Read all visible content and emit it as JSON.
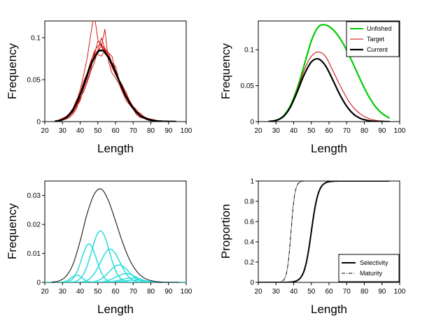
{
  "chart_data": [
    {
      "id": "panel-a",
      "type": "line",
      "xlabel": "Length",
      "ylabel": "Frequency",
      "xlim": [
        20,
        100
      ],
      "ylim": [
        0,
        0.12
      ],
      "xticks": [
        "20",
        "30",
        "40",
        "50",
        "60",
        "70",
        "80",
        "90",
        "100"
      ],
      "yticks": [
        "0",
        "0.05",
        "0.1"
      ],
      "grid": false,
      "mean_series": {
        "color": "#000000",
        "x": [
          26,
          30,
          34,
          38,
          42,
          46,
          50,
          52,
          54,
          58,
          62,
          66,
          70,
          74,
          78,
          82,
          86,
          90,
          94
        ],
        "y": [
          0.0004,
          0.0023,
          0.0085,
          0.0222,
          0.0436,
          0.0673,
          0.0829,
          0.0848,
          0.0827,
          0.0688,
          0.0489,
          0.0299,
          0.0159,
          0.0073,
          0.0029,
          0.001,
          0.0003,
          0.0001,
          0
        ]
      },
      "sample_series": {
        "color": "#cc0000",
        "x": [
          26,
          28,
          30,
          32,
          34,
          36,
          38,
          40,
          42,
          44,
          46,
          48,
          50,
          52,
          54,
          56,
          58,
          60,
          62,
          64,
          66,
          68,
          70,
          72,
          74,
          76,
          78,
          80,
          82,
          84,
          86,
          88,
          90,
          92,
          94
        ],
        "lines": [
          [
            0,
            0.001,
            0.002,
            0.004,
            0.007,
            0.012,
            0.021,
            0.031,
            0.042,
            0.055,
            0.07,
            0.084,
            0.09,
            0.092,
            0.084,
            0.079,
            0.07,
            0.058,
            0.05,
            0.042,
            0.03,
            0.022,
            0.017,
            0.011,
            0.008,
            0.005,
            0.003,
            0.002,
            0.001,
            0.001,
            0,
            0,
            0,
            0,
            0
          ],
          [
            0,
            0,
            0.002,
            0.005,
            0.009,
            0.016,
            0.024,
            0.038,
            0.056,
            0.076,
            0.104,
            0.128,
            0.098,
            0.09,
            0.11,
            0.072,
            0.058,
            0.052,
            0.045,
            0.035,
            0.025,
            0.02,
            0.015,
            0.008,
            0.005,
            0.004,
            0.002,
            0.002,
            0.001,
            0,
            0,
            0,
            0,
            0,
            0
          ],
          [
            0,
            0.002,
            0.003,
            0.005,
            0.008,
            0.013,
            0.02,
            0.028,
            0.036,
            0.048,
            0.062,
            0.081,
            0.08,
            0.078,
            0.085,
            0.082,
            0.07,
            0.066,
            0.05,
            0.04,
            0.035,
            0.024,
            0.018,
            0.014,
            0.008,
            0.006,
            0.004,
            0.003,
            0.002,
            0.001,
            0.001,
            0,
            0,
            0,
            0
          ],
          [
            0,
            0.001,
            0.002,
            0.003,
            0.007,
            0.011,
            0.018,
            0.025,
            0.04,
            0.052,
            0.068,
            0.079,
            0.096,
            0.092,
            0.086,
            0.076,
            0.065,
            0.061,
            0.048,
            0.036,
            0.028,
            0.021,
            0.015,
            0.01,
            0.006,
            0.004,
            0.004,
            0.002,
            0.001,
            0,
            0,
            0,
            0,
            0,
            0
          ],
          [
            0,
            0.002,
            0.004,
            0.006,
            0.01,
            0.016,
            0.026,
            0.034,
            0.048,
            0.058,
            0.072,
            0.082,
            0.084,
            0.09,
            0.081,
            0.076,
            0.065,
            0.056,
            0.048,
            0.036,
            0.029,
            0.024,
            0.016,
            0.012,
            0.008,
            0.006,
            0.004,
            0.003,
            0.002,
            0.001,
            0,
            0,
            0,
            0,
            0
          ],
          [
            0,
            0.001,
            0.002,
            0.003,
            0.005,
            0.009,
            0.016,
            0.028,
            0.036,
            0.047,
            0.06,
            0.07,
            0.085,
            0.1,
            0.087,
            0.082,
            0.078,
            0.06,
            0.05,
            0.043,
            0.034,
            0.025,
            0.018,
            0.012,
            0.01,
            0.006,
            0.004,
            0.002,
            0.002,
            0.001,
            0.001,
            0,
            0,
            0,
            0
          ]
        ]
      }
    },
    {
      "id": "panel-b",
      "type": "line",
      "xlabel": "Length",
      "ylabel": "Frequency",
      "xlim": [
        20,
        100
      ],
      "ylim": [
        0,
        0.14
      ],
      "xticks": [
        "20",
        "30",
        "40",
        "50",
        "60",
        "70",
        "80",
        "90",
        "100"
      ],
      "yticks": [
        "0",
        "0.05",
        "0.1"
      ],
      "grid": false,
      "legend_position": "top-right",
      "series": [
        {
          "name": "Unfished",
          "color": "#00cc00",
          "x": [
            26,
            30,
            34,
            38,
            42,
            46,
            50,
            54,
            58,
            62,
            66,
            70,
            74,
            78,
            82,
            86,
            90,
            94
          ],
          "y": [
            0.0003,
            0.0018,
            0.0073,
            0.0214,
            0.0461,
            0.0788,
            0.1122,
            0.1318,
            0.1345,
            0.1286,
            0.1165,
            0.0994,
            0.0786,
            0.0569,
            0.0372,
            0.0218,
            0.0114,
            0.0053
          ]
        },
        {
          "name": "Target",
          "color": "#cc0000",
          "x": [
            26,
            30,
            34,
            38,
            42,
            46,
            50,
            54,
            58,
            62,
            66,
            70,
            74,
            78,
            82,
            86,
            90,
            94
          ],
          "y": [
            0.0002,
            0.0016,
            0.0067,
            0.0202,
            0.0438,
            0.0718,
            0.0908,
            0.0968,
            0.0908,
            0.0718,
            0.0516,
            0.0331,
            0.0192,
            0.0102,
            0.0048,
            0.002,
            0.0008,
            0.0002
          ]
        },
        {
          "name": "Current",
          "color": "#000000",
          "x": [
            26,
            30,
            34,
            38,
            42,
            46,
            50,
            54,
            58,
            62,
            66,
            70,
            74,
            78,
            82,
            86,
            90,
            94
          ],
          "y": [
            0.0002,
            0.0016,
            0.0066,
            0.0195,
            0.0412,
            0.0656,
            0.0829,
            0.0872,
            0.0778,
            0.0587,
            0.0382,
            0.0214,
            0.0102,
            0.0042,
            0.0015,
            0.0004,
            0.0001,
            0
          ]
        }
      ]
    },
    {
      "id": "panel-c",
      "type": "line",
      "xlabel": "Length",
      "ylabel": "Frequency",
      "xlim": [
        20,
        100
      ],
      "ylim": [
        0,
        0.035
      ],
      "xticks": [
        "20",
        "30",
        "40",
        "50",
        "60",
        "70",
        "80",
        "90",
        "100"
      ],
      "yticks": [
        "0",
        "0.01",
        "0.02",
        "0.03"
      ],
      "grid": false,
      "total": {
        "color": "#000000",
        "x": [
          24,
          28,
          32,
          36,
          40,
          44,
          48,
          52,
          56,
          60,
          64,
          68,
          72,
          76,
          80,
          84,
          88,
          92,
          96
        ],
        "y": [
          0.0001,
          0.0005,
          0.0021,
          0.0063,
          0.0143,
          0.0238,
          0.0305,
          0.0322,
          0.0282,
          0.0212,
          0.0138,
          0.0078,
          0.0038,
          0.0016,
          0.0006,
          0.0002,
          0,
          0,
          0
        ]
      },
      "age_classes": {
        "color": "#33dddd",
        "curves": [
          {
            "mean": 38,
            "sd": 3.2,
            "peak": 0.0025
          },
          {
            "mean": 45,
            "sd": 4.2,
            "peak": 0.0133
          },
          {
            "mean": 51.5,
            "sd": 5.0,
            "peak": 0.0178
          },
          {
            "mean": 57,
            "sd": 5.5,
            "peak": 0.0115
          },
          {
            "mean": 62,
            "sd": 5.6,
            "peak": 0.006
          },
          {
            "mean": 66,
            "sd": 5.8,
            "peak": 0.003
          },
          {
            "mean": 69,
            "sd": 6.0,
            "peak": 0.0015
          },
          {
            "mean": 71,
            "sd": 6.2,
            "peak": 0.0008
          }
        ]
      }
    },
    {
      "id": "panel-d",
      "type": "line",
      "xlabel": "Length",
      "ylabel": "Proportion",
      "xlim": [
        20,
        100
      ],
      "ylim": [
        0,
        1
      ],
      "xticks": [
        "20",
        "30",
        "40",
        "50",
        "60",
        "70",
        "80",
        "90",
        "100"
      ],
      "yticks": [
        "0",
        "0.2",
        "0.4",
        "0.6",
        "0.8",
        "1"
      ],
      "grid": false,
      "legend_position": "bottom-right",
      "series": [
        {
          "name": "Selectivity",
          "color": "#000000",
          "dash": "",
          "logistic": {
            "l50": 50,
            "slope": 0.5
          },
          "x": [
            20,
            30,
            35,
            40,
            42,
            44,
            46,
            48,
            50,
            52,
            54,
            56,
            58,
            60,
            65,
            70,
            80,
            90,
            94
          ],
          "y": [
            0,
            0,
            0,
            0.02,
            0.02,
            0.05,
            0.12,
            0.27,
            0.5,
            0.73,
            0.88,
            0.95,
            0.98,
            0.99,
            1,
            1,
            1,
            1,
            1
          ]
        },
        {
          "name": "Maturity",
          "color": "#000000",
          "dash": "5,2,1,2",
          "logistic": {
            "l50": 38.5,
            "slope": 0.9
          },
          "x": [
            30,
            34,
            35,
            36,
            37,
            38,
            38.5,
            39,
            40,
            41,
            42,
            43,
            44,
            46
          ],
          "y": [
            0,
            0.02,
            0.04,
            0.1,
            0.2,
            0.39,
            0.5,
            0.61,
            0.79,
            0.91,
            0.96,
            0.99,
            1,
            1
          ]
        }
      ]
    }
  ]
}
